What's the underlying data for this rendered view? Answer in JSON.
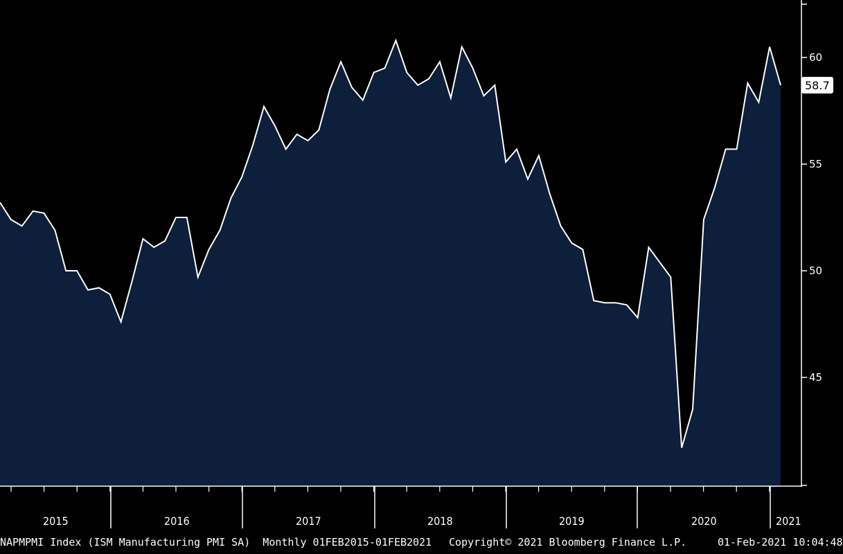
{
  "chart_data": {
    "type": "area",
    "x_labels": [
      "2015",
      "2016",
      "2017",
      "2018",
      "2019",
      "2020",
      "2021"
    ],
    "yticks": [
      "45",
      "50",
      "55",
      "60"
    ],
    "ylim": [
      40,
      63
    ],
    "series": [
      {
        "values": [
          53.2,
          52.4,
          52.1,
          52.8,
          52.7,
          51.9,
          50.0,
          50.0,
          49.1,
          49.2,
          48.9,
          47.6,
          49.5,
          51.5,
          51.1,
          51.4,
          52.5,
          52.5,
          49.7,
          51.0,
          51.9,
          53.4,
          54.4,
          55.9,
          57.7,
          56.8,
          55.7,
          56.4,
          56.1,
          56.6,
          58.5,
          59.8,
          58.6,
          58.0,
          59.3,
          59.5,
          60.8,
          59.3,
          58.7,
          59.0,
          59.8,
          58.1,
          60.5,
          59.5,
          58.2,
          58.7,
          55.1,
          55.7,
          54.3,
          55.4,
          53.6,
          52.1,
          51.3,
          51.0,
          48.6,
          48.5,
          48.5,
          48.4,
          47.8,
          51.1,
          50.4,
          49.7,
          41.7,
          43.5,
          52.4,
          53.9,
          55.7,
          55.7,
          58.8,
          57.9,
          60.5,
          58.7
        ],
        "color": "#0d1f3a"
      }
    ],
    "last_value_label": "58.7",
    "grid": false,
    "axis_side": "right"
  },
  "footer": {
    "ticker": "NAPMPMI Index (ISM Manufacturing PMI SA)  Monthly 01FEB2015-01FEB2021",
    "copyright": "Copyright© 2021 Bloomberg Finance L.P.",
    "timestamp": "01-Feb-2021 10:04:48"
  }
}
